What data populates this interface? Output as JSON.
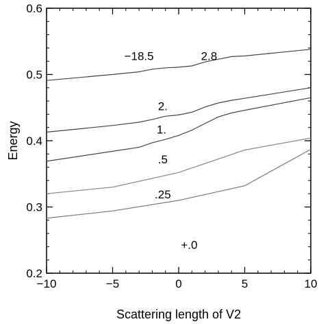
{
  "chart_data": {
    "type": "line",
    "title": "",
    "xlabel": "Scattering length of V2",
    "ylabel": "Energy",
    "xlim": [
      -10,
      10
    ],
    "ylim": [
      0.2,
      0.6
    ],
    "x_ticks": [
      -10,
      -5,
      0,
      5,
      10
    ],
    "x_tick_labels": [
      "−10",
      "−5",
      "0",
      "5",
      "10"
    ],
    "y_ticks": [
      0.2,
      0.3,
      0.4,
      0.5,
      0.6
    ],
    "y_tick_labels": [
      "0.2",
      "0.3",
      "0.4",
      "0.5",
      "0.6"
    ],
    "grid": false,
    "series": [
      {
        "color": "#444444",
        "x": [
          -10,
          -5,
          -3,
          -2,
          -1,
          0,
          1,
          2,
          3,
          4,
          5,
          10
        ],
        "y": [
          0.491,
          0.5,
          0.504,
          0.508,
          0.51,
          0.511,
          0.513,
          0.519,
          0.523,
          0.527,
          0.528,
          0.538
        ]
      },
      {
        "color": "#444444",
        "x": [
          -10,
          -5,
          -3,
          -2,
          -1,
          0,
          1,
          2,
          3,
          4,
          5,
          10
        ],
        "y": [
          0.413,
          0.423,
          0.428,
          0.432,
          0.437,
          0.439,
          0.443,
          0.451,
          0.457,
          0.461,
          0.464,
          0.48
        ]
      },
      {
        "color": "#444444",
        "x": [
          -10,
          -5,
          -3,
          -2,
          -1,
          0,
          1,
          2,
          3,
          4,
          5,
          10
        ],
        "y": [
          0.369,
          0.384,
          0.39,
          0.397,
          0.402,
          0.408,
          0.416,
          0.426,
          0.436,
          0.442,
          0.446,
          0.465
        ]
      },
      {
        "color": "#888888",
        "x": [
          -10,
          -5,
          0,
          5,
          10
        ],
        "y": [
          0.32,
          0.33,
          0.352,
          0.386,
          0.404
        ]
      },
      {
        "color": "#777777",
        "x": [
          -10,
          -5,
          0,
          5,
          10
        ],
        "y": [
          0.283,
          0.294,
          0.31,
          0.332,
          0.387
        ]
      }
    ],
    "annotations": [
      {
        "text": "−18.5",
        "x": -3.0,
        "y": 0.522
      },
      {
        "text": "2.8",
        "x": 2.3,
        "y": 0.522
      },
      {
        "text": "2.",
        "x": -1.2,
        "y": 0.446
      },
      {
        "text": "1.",
        "x": -1.3,
        "y": 0.411
      },
      {
        "text": ".5",
        "x": -1.2,
        "y": 0.366
      },
      {
        "text": ".25",
        "x": -1.2,
        "y": 0.313
      },
      {
        "text": "+.0",
        "x": 0.8,
        "y": 0.237
      }
    ]
  }
}
